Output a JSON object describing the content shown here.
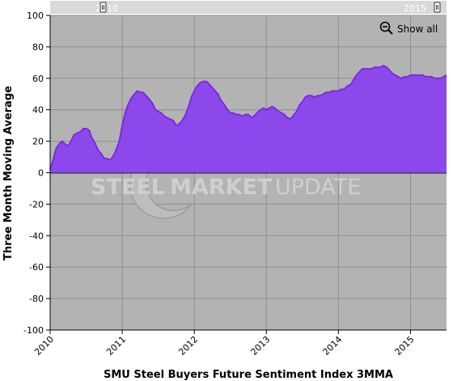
{
  "chart_data": {
    "type": "area",
    "title": "",
    "xlabel": "SMU Steel Buyers Future Sentiment Index 3MMA",
    "ylabel": "Three Month Moving Average",
    "ylim": [
      -100,
      100
    ],
    "yticks": [
      100,
      80,
      60,
      40,
      20,
      0,
      -20,
      -40,
      -60,
      -80,
      -100
    ],
    "xlim": [
      2010.0,
      2015.5
    ],
    "xticks": [
      {
        "value": 2010,
        "label": "2010"
      },
      {
        "value": 2011,
        "label": "2011"
      },
      {
        "value": 2012,
        "label": "2012"
      },
      {
        "value": 2013,
        "label": "2013"
      },
      {
        "value": 2014,
        "label": "2014"
      },
      {
        "value": 2015,
        "label": "2015"
      }
    ],
    "grid": true,
    "legend": "none",
    "series": [
      {
        "color": "#7b2be0",
        "fill": "#8a3ff0",
        "points": [
          [
            2010.0,
            2
          ],
          [
            2010.04,
            8
          ],
          [
            2010.08,
            15
          ],
          [
            2010.12,
            18
          ],
          [
            2010.17,
            20
          ],
          [
            2010.21,
            18
          ],
          [
            2010.25,
            17
          ],
          [
            2010.29,
            20
          ],
          [
            2010.33,
            24
          ],
          [
            2010.37,
            25
          ],
          [
            2010.42,
            26
          ],
          [
            2010.46,
            28
          ],
          [
            2010.5,
            28
          ],
          [
            2010.54,
            27
          ],
          [
            2010.58,
            22
          ],
          [
            2010.62,
            19
          ],
          [
            2010.67,
            14
          ],
          [
            2010.71,
            12
          ],
          [
            2010.75,
            9
          ],
          [
            2010.79,
            9
          ],
          [
            2010.83,
            8
          ],
          [
            2010.87,
            10
          ],
          [
            2010.92,
            15
          ],
          [
            2010.96,
            20
          ],
          [
            2011.0,
            30
          ],
          [
            2011.04,
            38
          ],
          [
            2011.08,
            43
          ],
          [
            2011.12,
            47
          ],
          [
            2011.17,
            50
          ],
          [
            2011.21,
            52
          ],
          [
            2011.25,
            51
          ],
          [
            2011.29,
            51
          ],
          [
            2011.33,
            49
          ],
          [
            2011.37,
            47
          ],
          [
            2011.42,
            44
          ],
          [
            2011.46,
            40
          ],
          [
            2011.5,
            39
          ],
          [
            2011.54,
            38
          ],
          [
            2011.58,
            36
          ],
          [
            2011.62,
            35
          ],
          [
            2011.67,
            34
          ],
          [
            2011.71,
            33
          ],
          [
            2011.75,
            30
          ],
          [
            2011.79,
            31
          ],
          [
            2011.83,
            33
          ],
          [
            2011.87,
            36
          ],
          [
            2011.92,
            42
          ],
          [
            2011.96,
            48
          ],
          [
            2012.0,
            52
          ],
          [
            2012.04,
            55
          ],
          [
            2012.08,
            57
          ],
          [
            2012.12,
            58
          ],
          [
            2012.17,
            58
          ],
          [
            2012.21,
            56
          ],
          [
            2012.25,
            54
          ],
          [
            2012.29,
            52
          ],
          [
            2012.33,
            50
          ],
          [
            2012.37,
            46
          ],
          [
            2012.42,
            43
          ],
          [
            2012.46,
            40
          ],
          [
            2012.5,
            38
          ],
          [
            2012.54,
            38
          ],
          [
            2012.58,
            37
          ],
          [
            2012.62,
            37
          ],
          [
            2012.67,
            36
          ],
          [
            2012.71,
            37
          ],
          [
            2012.75,
            37
          ],
          [
            2012.79,
            35
          ],
          [
            2012.83,
            36
          ],
          [
            2012.87,
            38
          ],
          [
            2012.92,
            40
          ],
          [
            2012.96,
            41
          ],
          [
            2013.0,
            40
          ],
          [
            2013.04,
            41
          ],
          [
            2013.08,
            42
          ],
          [
            2013.12,
            41
          ],
          [
            2013.17,
            39
          ],
          [
            2013.21,
            38
          ],
          [
            2013.25,
            37
          ],
          [
            2013.29,
            35
          ],
          [
            2013.33,
            34
          ],
          [
            2013.37,
            36
          ],
          [
            2013.42,
            39
          ],
          [
            2013.46,
            43
          ],
          [
            2013.5,
            45
          ],
          [
            2013.54,
            48
          ],
          [
            2013.58,
            49
          ],
          [
            2013.62,
            49
          ],
          [
            2013.67,
            48
          ],
          [
            2013.71,
            49
          ],
          [
            2013.75,
            49
          ],
          [
            2013.79,
            50
          ],
          [
            2013.83,
            51
          ],
          [
            2013.87,
            51
          ],
          [
            2013.92,
            52
          ],
          [
            2013.96,
            52
          ],
          [
            2014.0,
            52
          ],
          [
            2014.04,
            53
          ],
          [
            2014.08,
            53
          ],
          [
            2014.12,
            55
          ],
          [
            2014.17,
            56
          ],
          [
            2014.21,
            59
          ],
          [
            2014.25,
            62
          ],
          [
            2014.29,
            64
          ],
          [
            2014.33,
            66
          ],
          [
            2014.37,
            66
          ],
          [
            2014.42,
            66
          ],
          [
            2014.46,
            66
          ],
          [
            2014.5,
            67
          ],
          [
            2014.54,
            67
          ],
          [
            2014.58,
            67
          ],
          [
            2014.62,
            68
          ],
          [
            2014.67,
            67
          ],
          [
            2014.71,
            65
          ],
          [
            2014.75,
            63
          ],
          [
            2014.79,
            62
          ],
          [
            2014.83,
            61
          ],
          [
            2014.87,
            60
          ],
          [
            2014.92,
            61
          ],
          [
            2014.96,
            61
          ],
          [
            2015.0,
            62
          ],
          [
            2015.04,
            62
          ],
          [
            2015.08,
            62
          ],
          [
            2015.12,
            62
          ],
          [
            2015.17,
            62
          ],
          [
            2015.21,
            61
          ],
          [
            2015.25,
            61
          ],
          [
            2015.29,
            61
          ],
          [
            2015.33,
            60
          ],
          [
            2015.37,
            60
          ],
          [
            2015.42,
            60
          ],
          [
            2015.46,
            61
          ],
          [
            2015.5,
            62
          ]
        ]
      }
    ]
  },
  "navigator": {
    "left_label": "2010",
    "right_label": "2015"
  },
  "controls": {
    "show_all_label": "Show all"
  },
  "watermark": {
    "word_bold": "STEEL",
    "word_market": "MARKET",
    "word_update": "UPDATE"
  },
  "colors": {
    "plot_background": "#b3b3b3",
    "series_line": "#7b2be0",
    "series_fill": "#8a3ff0",
    "navigator_background": "#d9d9d9"
  }
}
